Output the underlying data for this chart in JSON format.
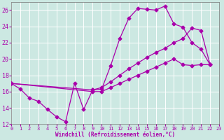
{
  "bg_color": "#cce8e2",
  "grid_color": "#ffffff",
  "line_color": "#aa00aa",
  "xlabel": "Windchill (Refroidissement éolien,°C)",
  "xlim": [
    0,
    23
  ],
  "ylim": [
    12,
    27
  ],
  "yticks": [
    12,
    14,
    16,
    18,
    20,
    22,
    24,
    26
  ],
  "xticks": [
    0,
    1,
    2,
    3,
    4,
    5,
    6,
    7,
    8,
    9,
    10,
    11,
    12,
    13,
    14,
    15,
    16,
    17,
    18,
    19,
    20,
    21,
    22,
    23
  ],
  "curve_main_x": [
    0,
    1,
    2,
    3,
    4,
    5,
    6,
    7,
    8,
    9,
    10,
    11,
    12,
    13,
    14,
    15,
    16,
    17,
    18,
    19,
    20,
    21,
    22
  ],
  "curve_main_y": [
    17.0,
    16.3,
    15.2,
    14.8,
    13.8,
    12.9,
    12.3,
    17.0,
    13.8,
    16.2,
    16.3,
    19.2,
    22.5,
    25.0,
    26.2,
    26.1,
    26.0,
    26.5,
    24.3,
    23.9,
    22.0,
    21.2,
    19.3
  ],
  "curve_mid_x": [
    0,
    9,
    10,
    11,
    12,
    13,
    14,
    15,
    16,
    17,
    18,
    19,
    20,
    21,
    22
  ],
  "curve_mid_y": [
    17.0,
    16.2,
    16.5,
    17.2,
    18.0,
    18.8,
    19.5,
    20.2,
    20.8,
    21.3,
    22.0,
    22.5,
    23.8,
    23.5,
    19.3
  ],
  "curve_low_x": [
    0,
    9,
    10,
    11,
    12,
    13,
    14,
    15,
    16,
    17,
    18,
    19,
    20,
    21,
    22
  ],
  "curve_low_y": [
    17.0,
    16.0,
    16.0,
    16.5,
    17.0,
    17.5,
    18.0,
    18.5,
    19.0,
    19.5,
    20.0,
    19.3,
    19.2,
    19.3,
    19.3
  ]
}
